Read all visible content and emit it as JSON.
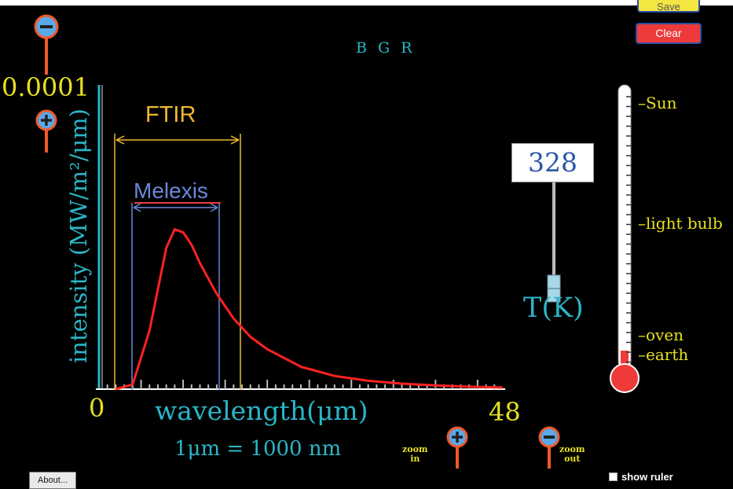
{
  "buttons": {
    "save": "Save",
    "clear": "Clear",
    "about": "About..."
  },
  "graph": {
    "bgr_label": "B G R",
    "y_max": "0.0001",
    "y_label": "intensity (MW/m²/μm)",
    "x_min": "0",
    "x_max": "48",
    "x_label": "wavelength(μm)",
    "unit_note": "1μm  =  1000 nm",
    "ftir_label": "FTIR",
    "melexis_label": "Melexis"
  },
  "temperature": {
    "value": "328",
    "label": "T(K)"
  },
  "thermometer": {
    "sun": "Sun",
    "light_bulb": "light bulb",
    "oven": "oven",
    "earth": "earth"
  },
  "zoom": {
    "in_label": "zoom\nin",
    "out_label": "zoom\nout"
  },
  "ruler": {
    "label": "show ruler"
  },
  "colors": {
    "curve": "#ff2222",
    "axis": "#2ab6c8",
    "ftir": "#f0b830",
    "melexis": "#6a88d8",
    "zoom_handle": "#f05a28"
  },
  "chart_data": {
    "type": "line",
    "title": "",
    "xlabel": "wavelength(μm)",
    "ylabel": "intensity (MW/m²/μm)",
    "xlim": [
      0,
      48
    ],
    "ylim": [
      0,
      0.0001
    ],
    "series": [
      {
        "x": [
          2,
          4,
          6,
          8,
          9,
          10,
          11,
          12,
          14,
          16,
          18,
          20,
          24,
          28,
          32,
          36,
          40,
          44,
          48
        ],
        "values": [
          0.0,
          1.5e-06,
          1.9e-05,
          4.6e-05,
          5.2e-05,
          5.1e-05,
          4.7e-05,
          4.1e-05,
          3.1e-05,
          2.3e-05,
          1.7e-05,
          1.3e-05,
          7.3e-06,
          4.3e-06,
          2.7e-06,
          1.8e-06,
          1.2e-06,
          8e-07,
          5e-07
        ]
      }
    ]
  }
}
